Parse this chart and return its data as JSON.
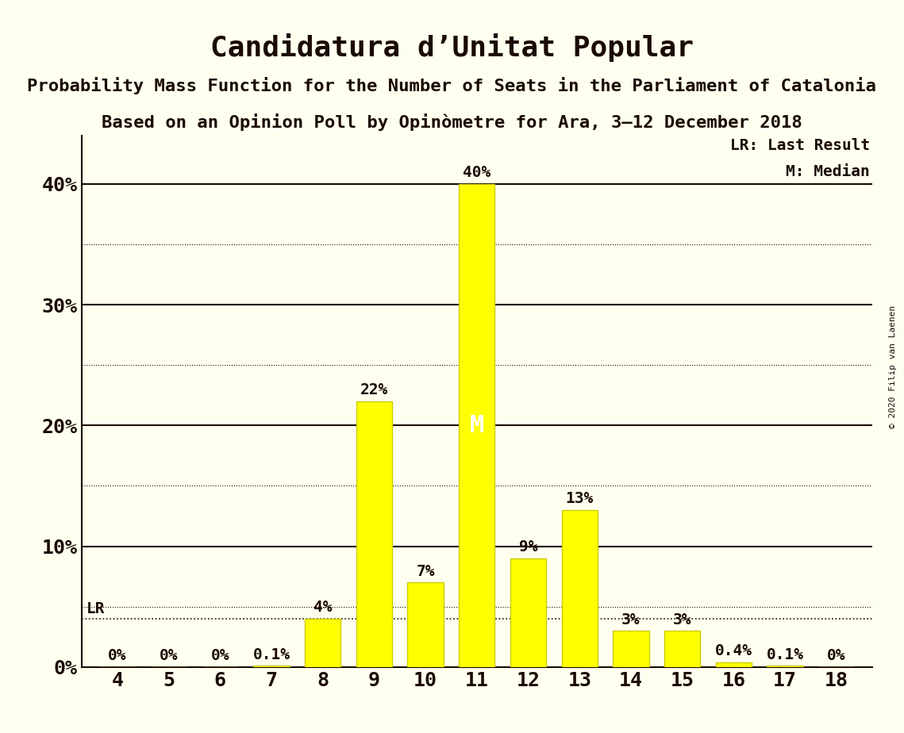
{
  "title": "Candidatura d’Unitat Popular",
  "subtitle1": "Probability Mass Function for the Number of Seats in the Parliament of Catalonia",
  "subtitle2": "Based on an Opinion Poll by Opinòmetre for Ara, 3–12 December 2018",
  "copyright": "© 2020 Filip van Laenen",
  "seats": [
    4,
    5,
    6,
    7,
    8,
    9,
    10,
    11,
    12,
    13,
    14,
    15,
    16,
    17,
    18
  ],
  "probabilities": [
    0.0,
    0.0,
    0.0,
    0.1,
    4.0,
    22.0,
    7.0,
    40.0,
    9.0,
    13.0,
    3.0,
    3.0,
    0.4,
    0.1,
    0.0
  ],
  "bar_color": "#ffff00",
  "bar_edge_color": "#cccc00",
  "background_color": "#fffff0",
  "text_color": "#1a0a00",
  "median_seat": 11,
  "last_result_seat": 8,
  "lr_label": "LR",
  "median_label": "M",
  "legend_lr": "LR: Last Result",
  "legend_m": "M: Median",
  "ylabel_ticks": [
    0,
    10,
    20,
    30,
    40
  ],
  "minor_ticks": [
    5,
    15,
    25,
    35
  ],
  "ylim": [
    0,
    44
  ],
  "title_fontsize": 26,
  "subtitle_fontsize": 16,
  "axis_label_fontsize": 18,
  "bar_label_fontsize": 14,
  "legend_fontsize": 14,
  "median_label_fontsize": 22
}
